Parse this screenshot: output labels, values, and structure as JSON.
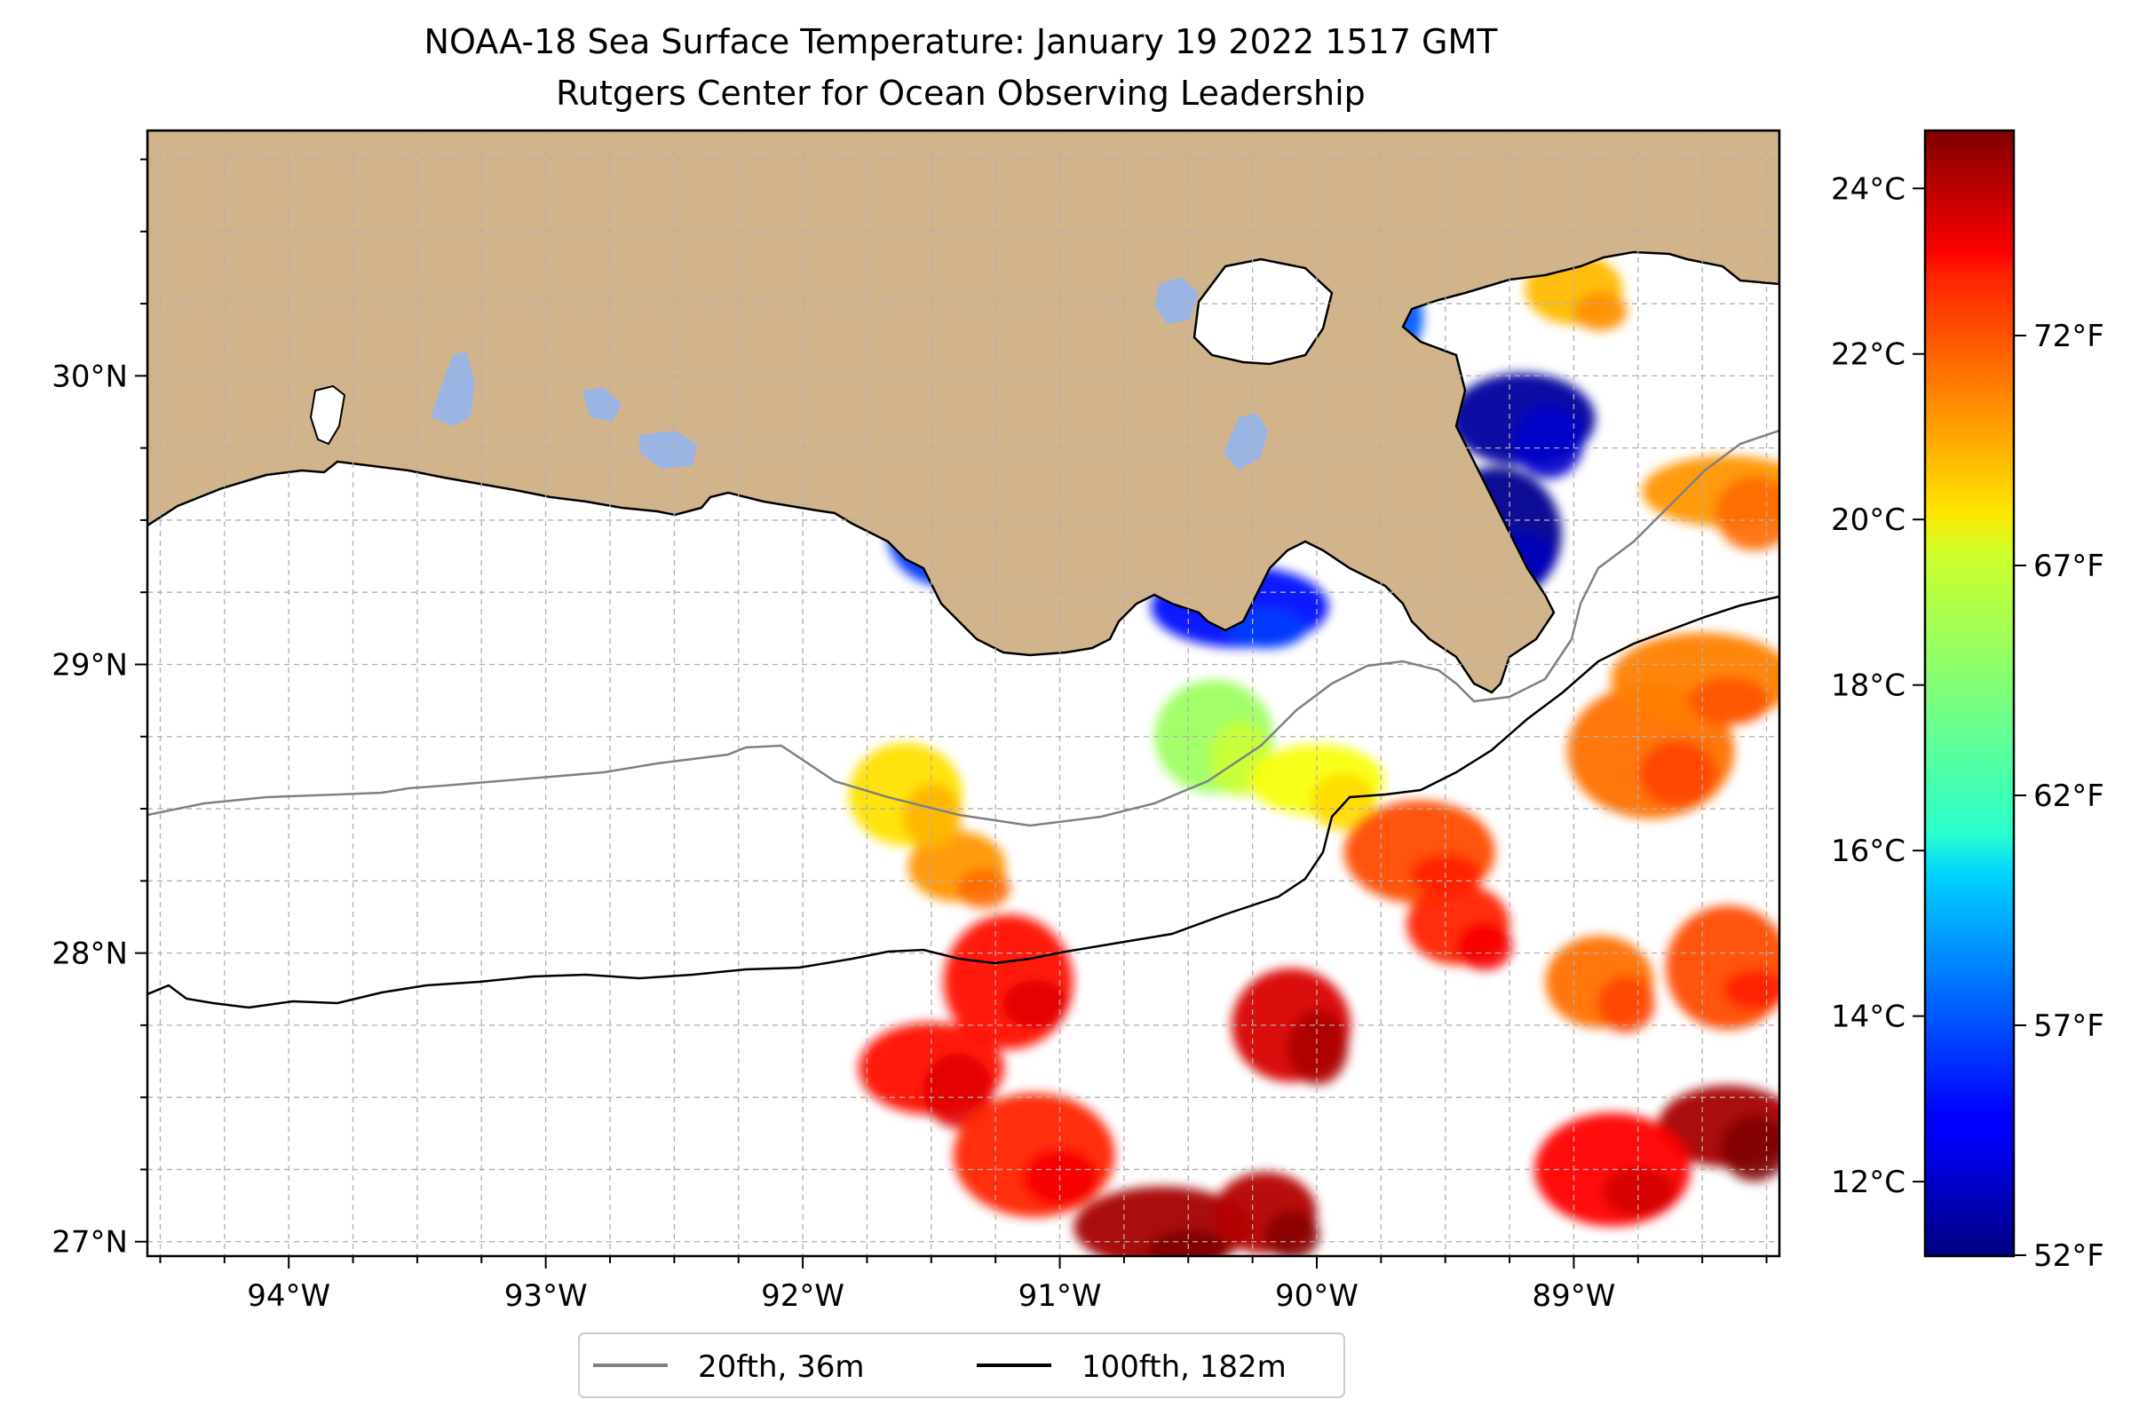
{
  "title": {
    "line1": "NOAA-18 Sea Surface Temperature: January 19 2022 1517 GMT",
    "line2": "Rutgers Center for Ocean Observing Leadership"
  },
  "map": {
    "lon_range": [
      -94.55,
      -88.2
    ],
    "lat_range": [
      26.95,
      30.85
    ],
    "lon_ticks": [
      {
        "value": -94,
        "label": "94°W"
      },
      {
        "value": -93,
        "label": "93°W"
      },
      {
        "value": -92,
        "label": "92°W"
      },
      {
        "value": -91,
        "label": "91°W"
      },
      {
        "value": -90,
        "label": "90°W"
      },
      {
        "value": -89,
        "label": "89°W"
      }
    ],
    "lat_ticks": [
      {
        "value": 27,
        "label": "27°N"
      },
      {
        "value": 28,
        "label": "28°N"
      },
      {
        "value": 29,
        "label": "29°N"
      },
      {
        "value": 30,
        "label": "30°N"
      }
    ],
    "gridlines": true,
    "land_color": "#d2b48c",
    "inland_water_color": "#9ab5e4",
    "isobath_20_color": "#808080",
    "isobath_100_color": "#000000"
  },
  "legend": {
    "placement": "lower-center",
    "entries": [
      {
        "label": "20fth, 36m",
        "color": "#808080"
      },
      {
        "label": "100fth, 182m",
        "color": "#000000"
      }
    ]
  },
  "colorbar": {
    "colormap": "jet",
    "range_c": [
      11.1,
      24.7
    ],
    "celsius_ticks": [
      {
        "value": 12,
        "label": "12°C"
      },
      {
        "value": 14,
        "label": "14°C"
      },
      {
        "value": 16,
        "label": "16°C"
      },
      {
        "value": 18,
        "label": "18°C"
      },
      {
        "value": 20,
        "label": "20°C"
      },
      {
        "value": 22,
        "label": "22°C"
      },
      {
        "value": 24,
        "label": "24°C"
      }
    ],
    "fahrenheit_ticks": [
      {
        "value": 52,
        "label": "52°F"
      },
      {
        "value": 57,
        "label": "57°F"
      },
      {
        "value": 62,
        "label": "62°F"
      },
      {
        "value": 67,
        "label": "67°F"
      },
      {
        "value": 72,
        "label": "72°F"
      }
    ]
  },
  "sst_patches": [
    {
      "lon": -91.4,
      "lat": 28.3,
      "c": 21.0
    },
    {
      "lon": -91.6,
      "lat": 28.55,
      "c": 20.0
    },
    {
      "lon": -91.2,
      "lat": 27.9,
      "c": 22.8
    },
    {
      "lon": -91.5,
      "lat": 27.6,
      "c": 22.8
    },
    {
      "lon": -91.1,
      "lat": 27.3,
      "c": 22.5
    },
    {
      "lon": -90.6,
      "lat": 27.05,
      "c": 24.2
    },
    {
      "lon": -90.2,
      "lat": 27.1,
      "c": 24.0
    },
    {
      "lon": -90.4,
      "lat": 28.75,
      "c": 18.3
    },
    {
      "lon": -90.0,
      "lat": 28.6,
      "c": 19.5
    },
    {
      "lon": -89.6,
      "lat": 28.35,
      "c": 22.0
    },
    {
      "lon": -88.7,
      "lat": 28.7,
      "c": 21.5
    },
    {
      "lon": -88.5,
      "lat": 28.95,
      "c": 21.3
    },
    {
      "lon": -88.9,
      "lat": 27.9,
      "c": 21.5
    },
    {
      "lon": -88.4,
      "lat": 27.95,
      "c": 22.0
    },
    {
      "lon": -88.4,
      "lat": 27.4,
      "c": 24.2
    },
    {
      "lon": -88.85,
      "lat": 27.25,
      "c": 23.0
    },
    {
      "lon": -88.4,
      "lat": 29.6,
      "c": 21.0
    },
    {
      "lon": -89.0,
      "lat": 30.3,
      "c": 20.5
    },
    {
      "lon": -91.45,
      "lat": 29.45,
      "c": 13.5
    },
    {
      "lon": -89.3,
      "lat": 29.45,
      "c": 11.3
    },
    {
      "lon": -89.2,
      "lat": 29.85,
      "c": 11.5
    },
    {
      "lon": -89.9,
      "lat": 30.2,
      "c": 14.0
    },
    {
      "lon": -90.3,
      "lat": 29.2,
      "c": 13.0
    },
    {
      "lon": -89.45,
      "lat": 28.1,
      "c": 22.5
    },
    {
      "lon": -90.1,
      "lat": 27.75,
      "c": 23.5
    }
  ]
}
